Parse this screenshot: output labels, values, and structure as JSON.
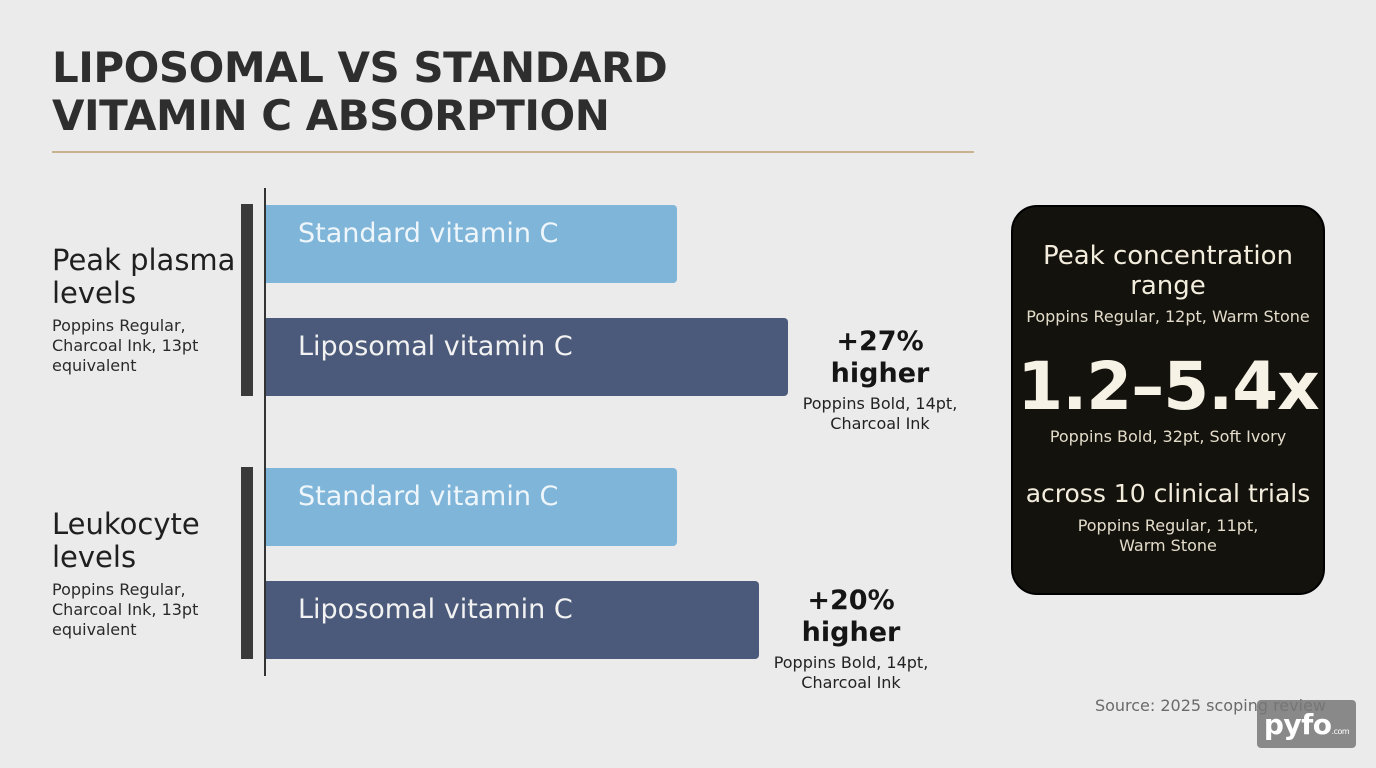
{
  "title_lines": [
    "LIPOSOMAL VS STANDARD",
    "VITAMIN C ABSORPTION"
  ],
  "chart_data": {
    "type": "bar",
    "orientation": "horizontal",
    "groups": [
      {
        "name": "Peak plasma\nlevels",
        "note": "Poppins Regular, Charcoal Ink, 13pt equivalent",
        "bars": [
          {
            "label": "Standard vitamin C",
            "relative_value": 1.0
          },
          {
            "label": "Liposomal vitamin C",
            "relative_value": 1.27
          }
        ],
        "delta_label": "+27% higher",
        "delta_note": "Poppins Bold, 14pt,\nCharcoal Ink"
      },
      {
        "name": "Leukocyte\nlevels",
        "note": "Poppins Regular, Charcoal Ink, 13pt equivalent",
        "bars": [
          {
            "label": "Standard vitamin C",
            "relative_value": 1.0
          },
          {
            "label": "Liposomal vitamin C",
            "relative_value": 1.2
          }
        ],
        "delta_label": "+20% higher",
        "delta_note": "Poppins Bold, 14pt,\nCharcoal Ink"
      }
    ],
    "colors": {
      "standard": "#7fb5d9",
      "liposomal": "#4b5a7a"
    }
  },
  "callout": {
    "heading": "Peak concentration\nrange",
    "heading_note": "Poppins Regular, 12pt, Warm Stone",
    "big_value": "1.2–5.4x",
    "big_note": "Poppins Bold, 32pt, Soft Ivory",
    "subtext": "across 10 clinical trials",
    "subtext_note": "Poppins Regular, 11pt,\nWarm Stone"
  },
  "source": "Source: 2025 scoping review",
  "watermark": {
    "text": "pyfo",
    "suffix": ".com"
  }
}
